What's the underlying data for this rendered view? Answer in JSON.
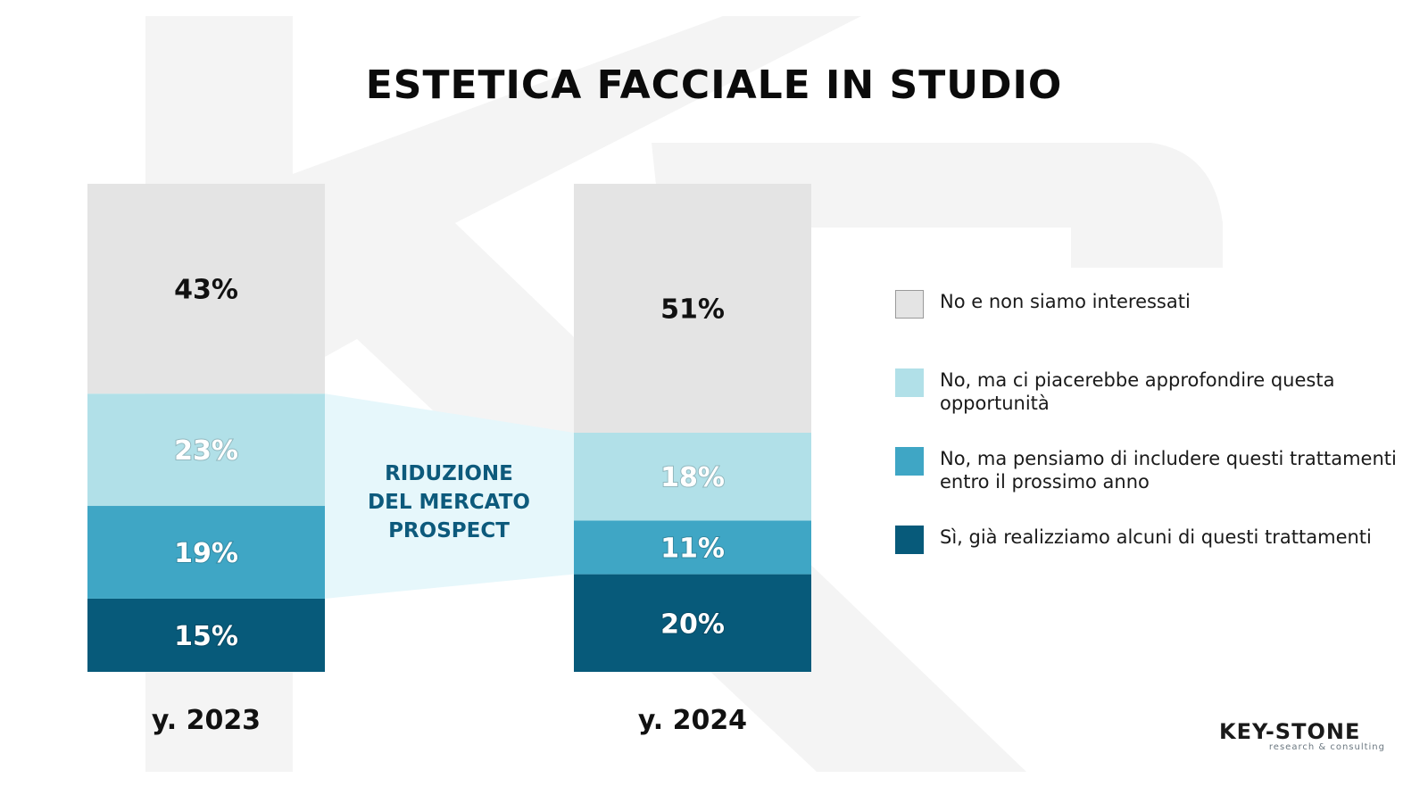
{
  "title": "ESTETICA FACCIALE IN STUDIO",
  "annotation": {
    "lines": [
      "RIDUZIONE",
      "DEL MERCATO",
      "PROSPECT"
    ],
    "color": "#0d5a7c"
  },
  "chart_data": {
    "type": "bar",
    "stacked": true,
    "categories": [
      "y. 2023",
      "y. 2024"
    ],
    "series": [
      {
        "name": "Sì, già realizziamo alcuni di questi trattamenti",
        "values": [
          15,
          20
        ],
        "color": "#075a7a",
        "label_color": "#ffffff"
      },
      {
        "name": "No, ma pensiamo di includere questi trattamenti entro il prossimo anno",
        "values": [
          19,
          11
        ],
        "color": "#3fa6c5",
        "label_color": "#ffffff"
      },
      {
        "name": "No, ma ci piacerebbe approfondire questa opportunità",
        "values": [
          23,
          18
        ],
        "color": "#b1e0e8",
        "label_color": "#ffffff"
      },
      {
        "name": "No e non siamo interessati",
        "values": [
          43,
          51
        ],
        "color": "#e4e4e4",
        "label_color": "#111111"
      }
    ],
    "value_suffix": "%",
    "ylim": [
      0,
      100
    ],
    "legend_position": "right",
    "legend_order": [
      3,
      2,
      1,
      0
    ],
    "grid": false,
    "connector_color": "#e6f7fb"
  },
  "logo": {
    "main": "KEY-STONE",
    "sub": "research & consulting"
  }
}
